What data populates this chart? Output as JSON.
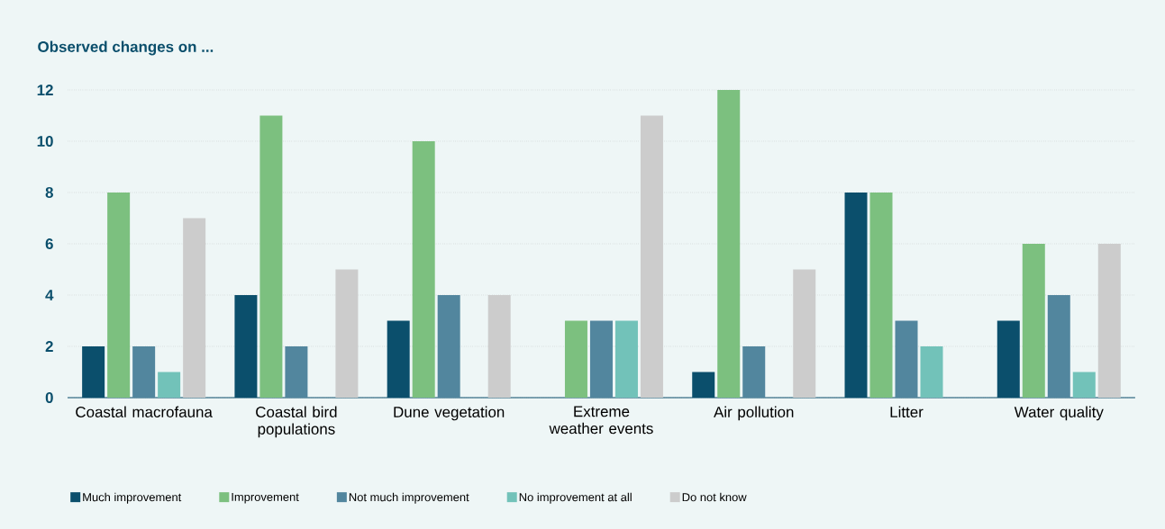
{
  "chart_data": {
    "type": "bar",
    "title": "Observed changes on ...",
    "categories": [
      "Coastal macrofauna",
      "Coastal bird populations",
      "Dune vegetation",
      "Extreme weather events",
      "Air pollution",
      "Litter",
      "Water quality"
    ],
    "series": [
      {
        "name": "Much improvement",
        "color": "#0b4f6c",
        "values": [
          2,
          4,
          3,
          0,
          1,
          8,
          3
        ]
      },
      {
        "name": "Improvement",
        "color": "#7cc07f",
        "values": [
          8,
          11,
          10,
          3,
          12,
          8,
          6
        ]
      },
      {
        "name": "Not much improvement",
        "color": "#52869e",
        "values": [
          2,
          2,
          4,
          3,
          2,
          3,
          4
        ]
      },
      {
        "name": "No improvement at all",
        "color": "#72c2b9",
        "values": [
          1,
          0,
          0,
          3,
          0,
          2,
          1
        ]
      },
      {
        "name": "Do not know",
        "color": "#cccccc",
        "values": [
          7,
          5,
          4,
          11,
          5,
          0,
          6
        ]
      }
    ],
    "ylim": [
      0,
      12
    ],
    "yticks": [
      0,
      2,
      4,
      6,
      8,
      10,
      12
    ],
    "grid": "y",
    "legend": "bottom left"
  }
}
